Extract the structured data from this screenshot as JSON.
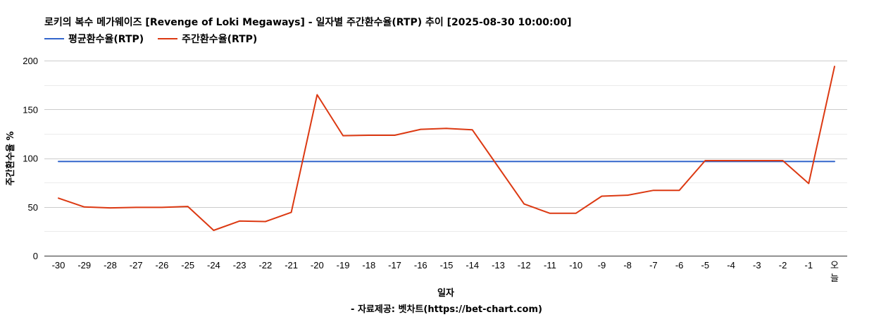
{
  "chart_data": {
    "type": "line",
    "title": "로키의 복수 메가웨이즈 [Revenge of Loki Megaways] - 일자별 주간환수율(RTP) 추이 [2025-08-30 10:00:00]",
    "xlabel": "일자",
    "ylabel": "주간환수율 %",
    "ylim": [
      0,
      200
    ],
    "yticks": [
      "0",
      "50",
      "100",
      "150",
      "200"
    ],
    "grid": true,
    "legend_position": "top-left",
    "categories": [
      "-30",
      "-29",
      "-28",
      "-27",
      "-26",
      "-25",
      "-24",
      "-23",
      "-22",
      "-21",
      "-20",
      "-19",
      "-18",
      "-17",
      "-16",
      "-15",
      "-14",
      "-13",
      "-12",
      "-11",
      "-10",
      "-9",
      "-8",
      "-7",
      "-6",
      "-5",
      "-4",
      "-3",
      "-2",
      "-1",
      "오늘"
    ],
    "series": [
      {
        "name": "평균환수율(RTP)",
        "color": "#3366cc",
        "values": [
          96.5,
          96.5,
          96.5,
          96.5,
          96.5,
          96.5,
          96.5,
          96.5,
          96.5,
          96.5,
          96.5,
          96.5,
          96.5,
          96.5,
          96.5,
          96.5,
          96.5,
          96.5,
          96.5,
          96.5,
          96.5,
          96.5,
          96.5,
          96.5,
          96.5,
          96.5,
          96.5,
          96.5,
          96.5,
          96.5,
          96.5
        ]
      },
      {
        "name": "주간환수율(RTP)",
        "color": "#dc3912",
        "values": [
          59,
          50,
          49,
          49.5,
          49.5,
          50.5,
          26,
          35.5,
          35,
          44.5,
          165,
          123,
          123.5,
          123.5,
          129.5,
          130.5,
          129,
          91,
          53,
          43.5,
          43.5,
          61,
          62,
          67,
          67,
          97.5,
          97.5,
          97.5,
          97.5,
          74,
          194
        ]
      }
    ],
    "source": "- 자료제공: 벳차트(https://bet-chart.com)"
  }
}
